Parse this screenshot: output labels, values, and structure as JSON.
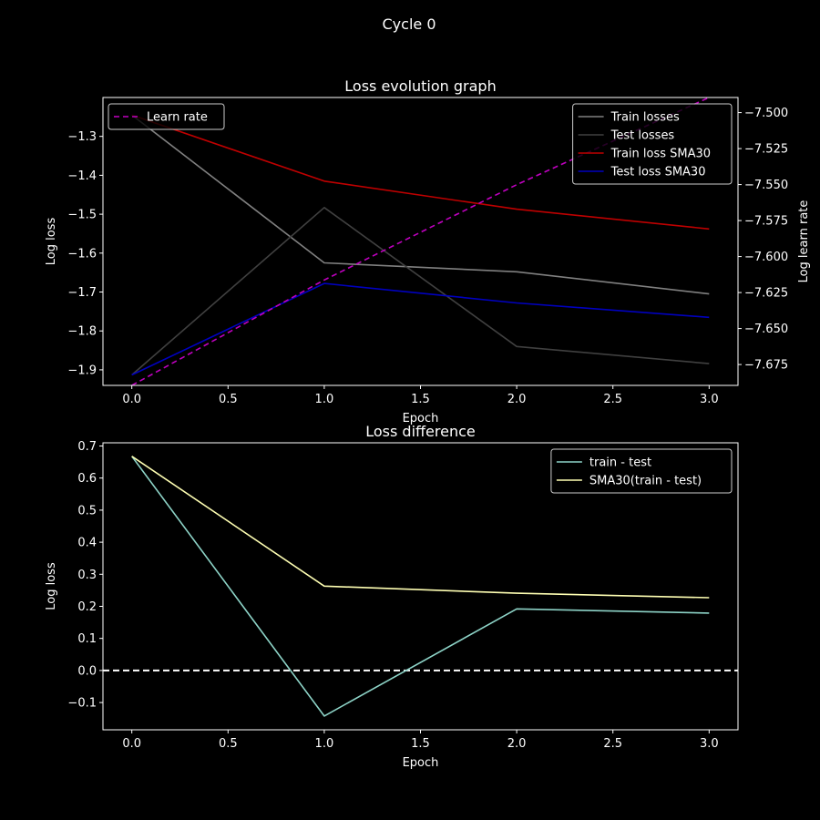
{
  "figure": {
    "suptitle": "Cycle 0"
  },
  "chart_data": [
    {
      "type": "line",
      "title": "Loss evolution graph",
      "xlabel": "Epoch",
      "ylabel": "Log loss",
      "y2label": "Log learn rate",
      "x": [
        0,
        1,
        2,
        3
      ],
      "xlim": [
        -0.15,
        3.15
      ],
      "ylim": [
        -1.94,
        -1.2
      ],
      "y2lim": [
        -7.6895,
        -7.4895
      ],
      "xticks": [
        0.0,
        0.5,
        1.0,
        1.5,
        2.0,
        2.5,
        3.0
      ],
      "xtick_labels": [
        "0.0",
        "0.5",
        "1.0",
        "1.5",
        "2.0",
        "2.5",
        "3.0"
      ],
      "yticks": [
        -1.3,
        -1.4,
        -1.5,
        -1.6,
        -1.7,
        -1.8,
        -1.9
      ],
      "ytick_labels": [
        "−1.3",
        "−1.4",
        "−1.5",
        "−1.6",
        "−1.7",
        "−1.8",
        "−1.9"
      ],
      "y2ticks": [
        -7.5,
        -7.525,
        -7.55,
        -7.575,
        -7.6,
        -7.625,
        -7.65,
        -7.675
      ],
      "y2tick_labels": [
        "−7.500",
        "−7.525",
        "−7.550",
        "−7.575",
        "−7.600",
        "−7.625",
        "−7.650",
        "−7.675"
      ],
      "series": [
        {
          "name": "Train losses",
          "axis": "left",
          "color": "#808080",
          "dash": "",
          "values": [
            -1.245,
            -1.625,
            -1.648,
            -1.705
          ]
        },
        {
          "name": "Test losses",
          "axis": "left",
          "color": "#404040",
          "dash": "",
          "values": [
            -1.913,
            -1.483,
            -1.84,
            -1.884
          ]
        },
        {
          "name": "Train loss SMA30",
          "axis": "left",
          "color": "#bf0000",
          "dash": "",
          "values": [
            -1.245,
            -1.415,
            -1.487,
            -1.538
          ]
        },
        {
          "name": "Test loss SMA30",
          "axis": "left",
          "color": "#0000bf",
          "dash": "",
          "values": [
            -1.913,
            -1.678,
            -1.728,
            -1.765
          ]
        },
        {
          "name": "Learn rate",
          "axis": "right",
          "color": "#bf00bf",
          "dash": "6,4",
          "values": [
            -7.6895,
            -7.6163,
            -7.5501,
            -7.4895
          ]
        }
      ],
      "legends": [
        {
          "position": "upper-left",
          "entries": [
            "Learn rate"
          ]
        },
        {
          "position": "upper-right",
          "entries": [
            "Train losses",
            "Test losses",
            "Train loss SMA30",
            "Test loss SMA30"
          ]
        }
      ]
    },
    {
      "type": "line",
      "title": "Loss difference",
      "xlabel": "Epoch",
      "ylabel": "Log loss",
      "x": [
        0,
        1,
        2,
        3
      ],
      "xlim": [
        -0.15,
        3.15
      ],
      "ylim": [
        -0.185,
        0.71
      ],
      "xticks": [
        0.0,
        0.5,
        1.0,
        1.5,
        2.0,
        2.5,
        3.0
      ],
      "xtick_labels": [
        "0.0",
        "0.5",
        "1.0",
        "1.5",
        "2.0",
        "2.5",
        "3.0"
      ],
      "yticks": [
        0.7,
        0.6,
        0.5,
        0.4,
        0.3,
        0.2,
        0.1,
        0.0,
        -0.1
      ],
      "ytick_labels": [
        "0.7",
        "0.6",
        "0.5",
        "0.4",
        "0.3",
        "0.2",
        "0.1",
        "0.0",
        "−0.1"
      ],
      "series": [
        {
          "name": "train - test",
          "color": "#8dd3c7",
          "dash": "",
          "values": [
            0.668,
            -0.142,
            0.192,
            0.179
          ]
        },
        {
          "name": "SMA30(train - test)",
          "color": "#ffffb3",
          "dash": "",
          "values": [
            0.668,
            0.263,
            0.241,
            0.227
          ]
        }
      ],
      "hline": {
        "y": 0.0,
        "color": "#ffffff",
        "dash": "7,4"
      },
      "legends": [
        {
          "position": "upper-right",
          "entries": [
            "train - test",
            "SMA30(train - test)"
          ]
        }
      ]
    }
  ]
}
